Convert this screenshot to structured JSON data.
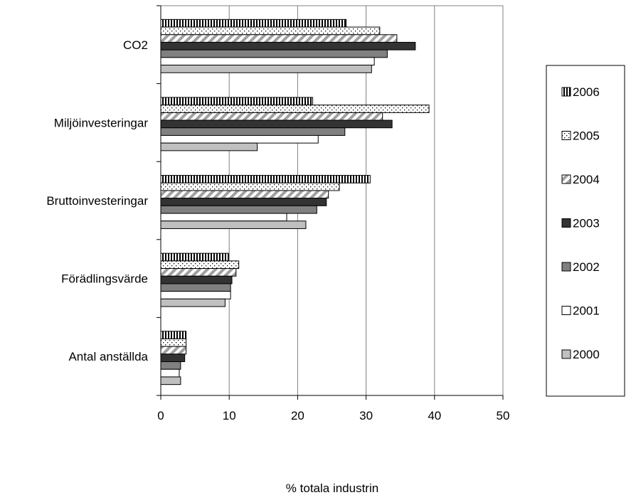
{
  "chart_data": {
    "type": "bar",
    "orientation": "horizontal",
    "categories": [
      "CO2",
      "Miljöinvesteringar",
      "Bruttoinvesteringar",
      "Förädlingsvärde",
      "Antal anställda"
    ],
    "series": [
      {
        "name": "2006",
        "values": [
          27.1,
          22.2,
          30.6,
          9.9,
          3.7
        ],
        "fill": "vertical-stripes"
      },
      {
        "name": "2005",
        "values": [
          32.0,
          39.2,
          26.1,
          11.4,
          3.7
        ],
        "fill": "dots"
      },
      {
        "name": "2004",
        "values": [
          34.5,
          32.4,
          24.5,
          11.0,
          3.7
        ],
        "fill": "diagonal-stripes"
      },
      {
        "name": "2003",
        "values": [
          37.2,
          33.8,
          24.2,
          10.4,
          3.5
        ],
        "fill": "#333333"
      },
      {
        "name": "2002",
        "values": [
          33.1,
          26.9,
          22.8,
          10.2,
          2.9
        ],
        "fill": "#808080"
      },
      {
        "name": "2001",
        "values": [
          31.2,
          23.0,
          18.4,
          10.2,
          2.7
        ],
        "fill": "#ffffff"
      },
      {
        "name": "2000",
        "values": [
          30.8,
          14.1,
          21.2,
          9.4,
          2.9
        ],
        "fill": "#c0c0c0"
      }
    ],
    "x_ticks": [
      "0",
      "10",
      "20",
      "30",
      "40",
      "50"
    ],
    "xlim": [
      0,
      50
    ],
    "xlabel": "% totala industrin",
    "ylabel": "",
    "title": "",
    "grid": "vertical",
    "legend_position": "right"
  }
}
